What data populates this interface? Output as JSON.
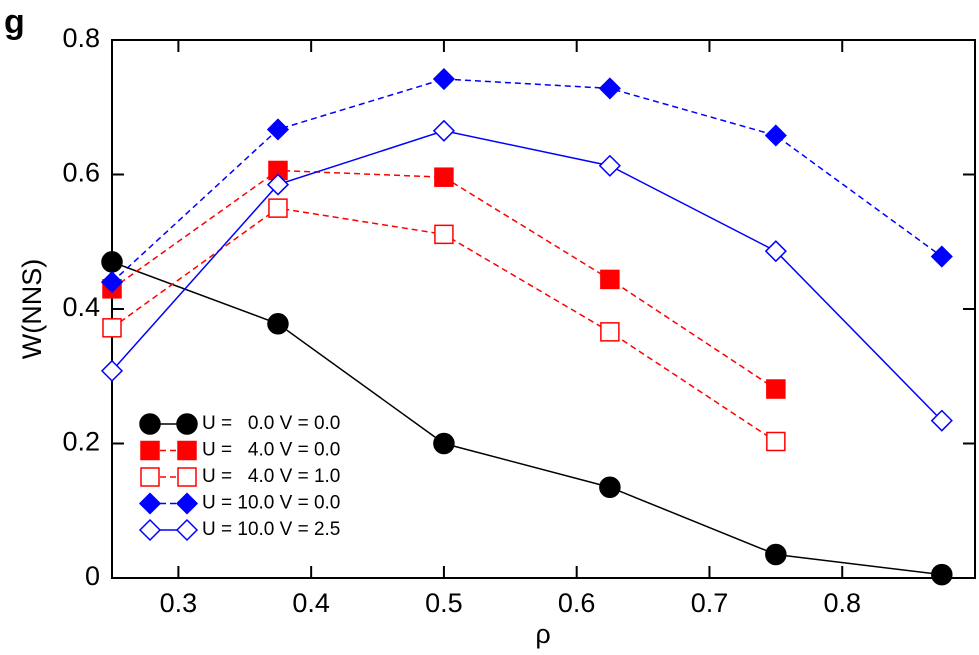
{
  "chart_data": {
    "type": "line",
    "panel_label": "g",
    "x_label": "ρ",
    "y_label": "W(NNS)",
    "x": [
      0.25,
      0.375,
      0.5,
      0.625,
      0.75,
      0.875
    ],
    "xlim": [
      0.25,
      0.9
    ],
    "xticks": [
      0.3,
      0.4,
      0.5,
      0.6,
      0.7,
      0.8
    ],
    "ylim": [
      0,
      0.8
    ],
    "yticks": [
      0,
      0.2,
      0.4,
      0.6,
      0.8
    ],
    "legend": "lower left",
    "series": [
      {
        "name": "U =   0.0 V = 0.0",
        "color": "#000000",
        "marker": "circle",
        "filled": true,
        "linestyle": "solid",
        "values": [
          0.47,
          0.378,
          0.2,
          0.135,
          0.035,
          0.005
        ]
      },
      {
        "name": "U =   4.0 V = 0.0",
        "color": "#ff0000",
        "marker": "square",
        "filled": true,
        "linestyle": "dashed",
        "values": [
          0.43,
          0.606,
          0.596,
          0.444,
          0.281,
          null
        ]
      },
      {
        "name": "U =   4.0 V = 1.0",
        "color": "#ff0000",
        "marker": "square",
        "filled": false,
        "linestyle": "dashed",
        "values": [
          0.372,
          0.55,
          0.511,
          0.366,
          0.203,
          null
        ]
      },
      {
        "name": "U = 10.0 V = 0.0",
        "color": "#0000ff",
        "marker": "diamond",
        "filled": true,
        "linestyle": "dashed",
        "values": [
          0.44,
          0.667,
          0.742,
          0.728,
          0.658,
          0.478
        ]
      },
      {
        "name": "U = 10.0 V = 2.5",
        "color": "#0000ff",
        "marker": "diamond",
        "filled": false,
        "linestyle": "solid",
        "values": [
          0.308,
          0.585,
          0.665,
          0.613,
          0.486,
          0.234
        ]
      }
    ]
  }
}
